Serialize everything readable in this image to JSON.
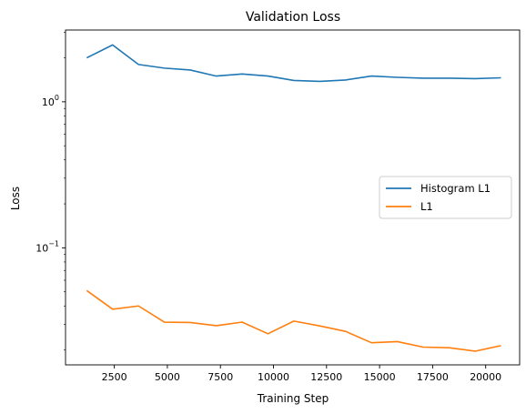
{
  "chart_data": {
    "type": "line",
    "title": "Validation Loss",
    "xlabel": "Training Step",
    "ylabel": "Loss",
    "yscale": "log",
    "xlim": [
      200,
      21600
    ],
    "ylim": [
      0.0158,
      3.1
    ],
    "grid": false,
    "legend_position": "center-right",
    "x_ticks": [
      2500,
      5000,
      7500,
      10000,
      12500,
      15000,
      17500,
      20000
    ],
    "x_tick_labels": [
      "2500",
      "5000",
      "7500",
      "10000",
      "12500",
      "15000",
      "17500",
      "20000"
    ],
    "y_major_ticks": [
      {
        "value": 0.1,
        "base": "10",
        "exp": "−1"
      },
      {
        "value": 1,
        "base": "10",
        "exp": "0"
      }
    ],
    "x": [
      1200,
      2420,
      3640,
      4860,
      6080,
      7300,
      8520,
      9740,
      10960,
      12180,
      13400,
      14620,
      15840,
      17060,
      18280,
      19500,
      20720
    ],
    "series": [
      {
        "name": "Histogram L1",
        "color": "#1f77b4",
        "values": [
          2.0,
          2.45,
          1.8,
          1.7,
          1.65,
          1.5,
          1.55,
          1.5,
          1.4,
          1.38,
          1.41,
          1.5,
          1.47,
          1.45,
          1.45,
          1.44,
          1.46
        ]
      },
      {
        "name": "L1",
        "color": "#ff7f0e",
        "values": [
          0.051,
          0.038,
          0.04,
          0.031,
          0.0308,
          0.0293,
          0.031,
          0.0258,
          0.0315,
          0.0292,
          0.0268,
          0.0224,
          0.0228,
          0.0209,
          0.0207,
          0.0196,
          0.0214
        ]
      }
    ]
  }
}
